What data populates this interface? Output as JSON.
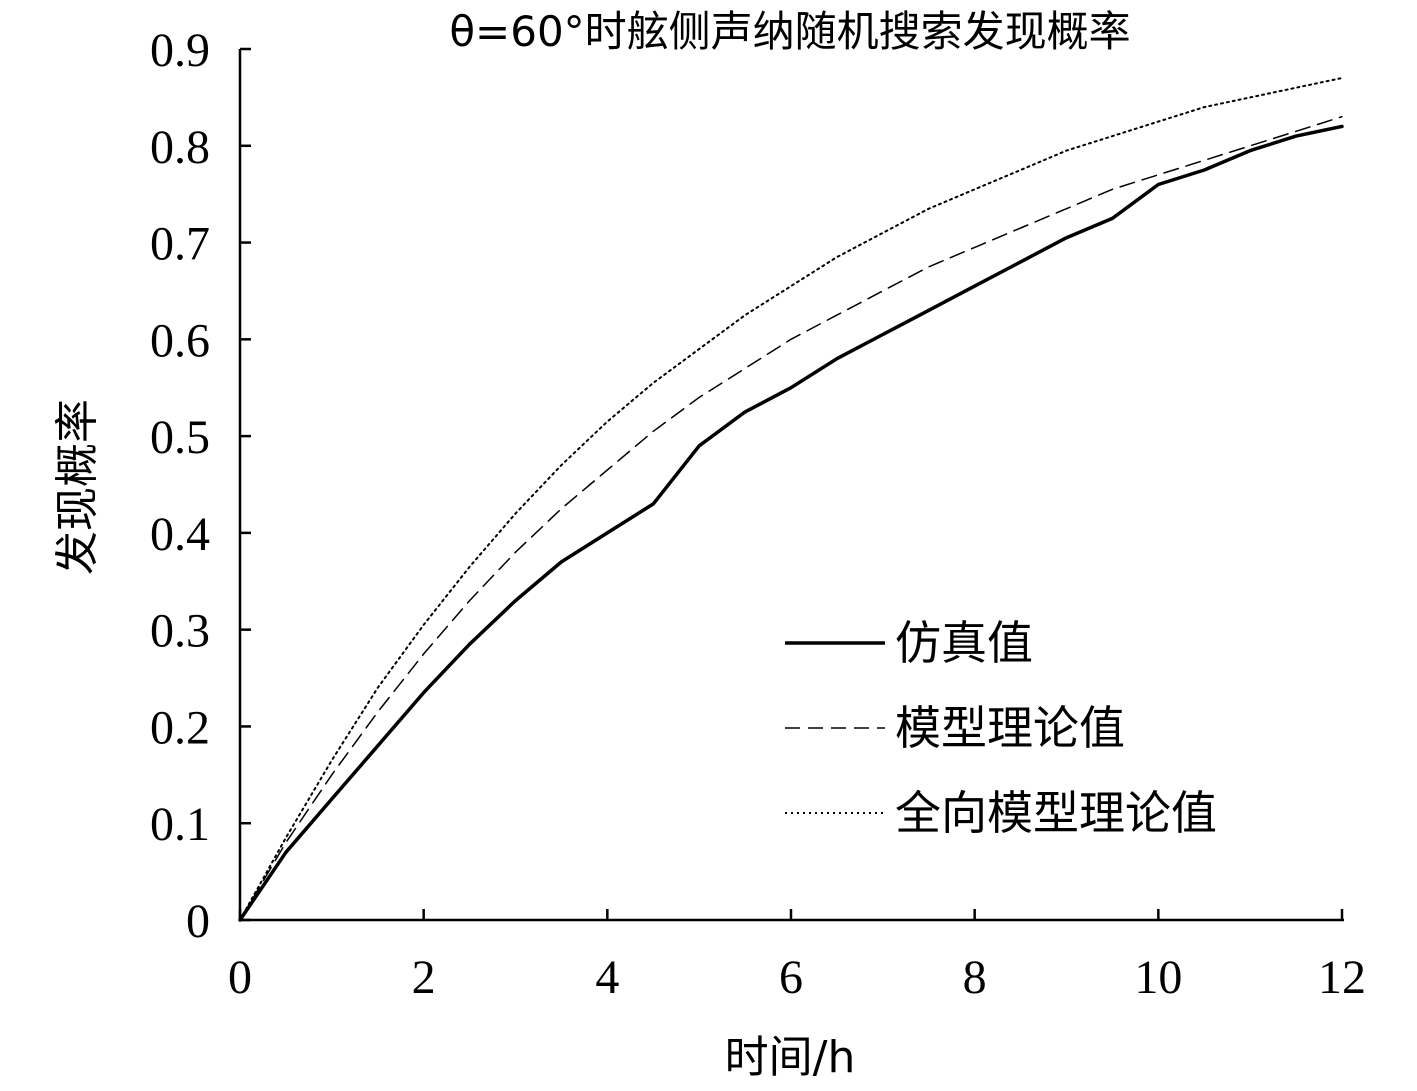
{
  "chart_data": {
    "type": "line",
    "title": "θ=60°时舷侧声纳随机搜索发现概率",
    "xlabel": "时间/h",
    "ylabel": "发现概率",
    "xlim": [
      0,
      12
    ],
    "ylim": [
      0,
      0.9
    ],
    "xticks": [
      "0",
      "2",
      "4",
      "6",
      "8",
      "10",
      "12"
    ],
    "yticks": [
      "0",
      "0.1",
      "0.2",
      "0.3",
      "0.4",
      "0.5",
      "0.6",
      "0.7",
      "0.8",
      "0.9"
    ],
    "grid": false,
    "legend_position": "lower-right",
    "x": [
      0,
      0.5,
      1,
      1.5,
      2,
      2.5,
      3,
      3.5,
      4,
      4.5,
      5,
      5.5,
      6,
      6.5,
      7,
      7.5,
      8,
      8.5,
      9,
      9.5,
      10,
      10.5,
      11,
      11.5,
      12
    ],
    "series": [
      {
        "name": "仿真值",
        "style": "solid",
        "color": "#000000",
        "values": [
          0,
          0.07,
          0.125,
          0.18,
          0.235,
          0.285,
          0.33,
          0.37,
          0.4,
          0.43,
          0.49,
          0.525,
          0.55,
          0.58,
          0.605,
          0.63,
          0.655,
          0.68,
          0.705,
          0.725,
          0.76,
          0.775,
          0.795,
          0.81,
          0.82
        ]
      },
      {
        "name": "模型理论值",
        "style": "dashed",
        "color": "#000000",
        "values": [
          0,
          0.08,
          0.15,
          0.215,
          0.275,
          0.33,
          0.38,
          0.425,
          0.465,
          0.505,
          0.54,
          0.57,
          0.6,
          0.625,
          0.65,
          0.675,
          0.695,
          0.715,
          0.735,
          0.755,
          0.77,
          0.785,
          0.8,
          0.815,
          0.83
        ]
      },
      {
        "name": "全向模型理论值",
        "style": "dotted",
        "color": "#000000",
        "values": [
          0,
          0.085,
          0.165,
          0.24,
          0.305,
          0.365,
          0.42,
          0.47,
          0.515,
          0.555,
          0.59,
          0.625,
          0.655,
          0.685,
          0.71,
          0.735,
          0.755,
          0.775,
          0.795,
          0.81,
          0.825,
          0.84,
          0.85,
          0.86,
          0.87
        ]
      }
    ]
  }
}
